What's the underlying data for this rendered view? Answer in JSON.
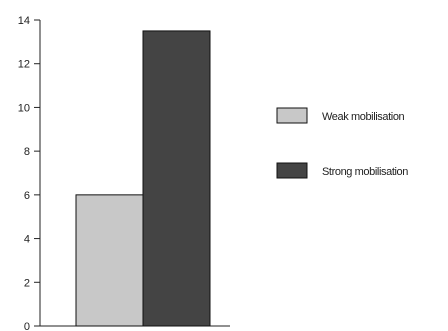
{
  "chart_data": {
    "type": "bar",
    "title": "",
    "xlabel": "",
    "ylabel": "",
    "ylim": [
      0,
      14
    ],
    "yticks": [
      0,
      2,
      4,
      6,
      8,
      10,
      12,
      14
    ],
    "grid": false,
    "legend_placement": "right",
    "series": [
      {
        "name": "Weak mobilisation",
        "value": 6,
        "color": "#c8c8c8"
      },
      {
        "name": "Strong mobilisation",
        "value": 13.5,
        "color": "#444444"
      }
    ]
  }
}
